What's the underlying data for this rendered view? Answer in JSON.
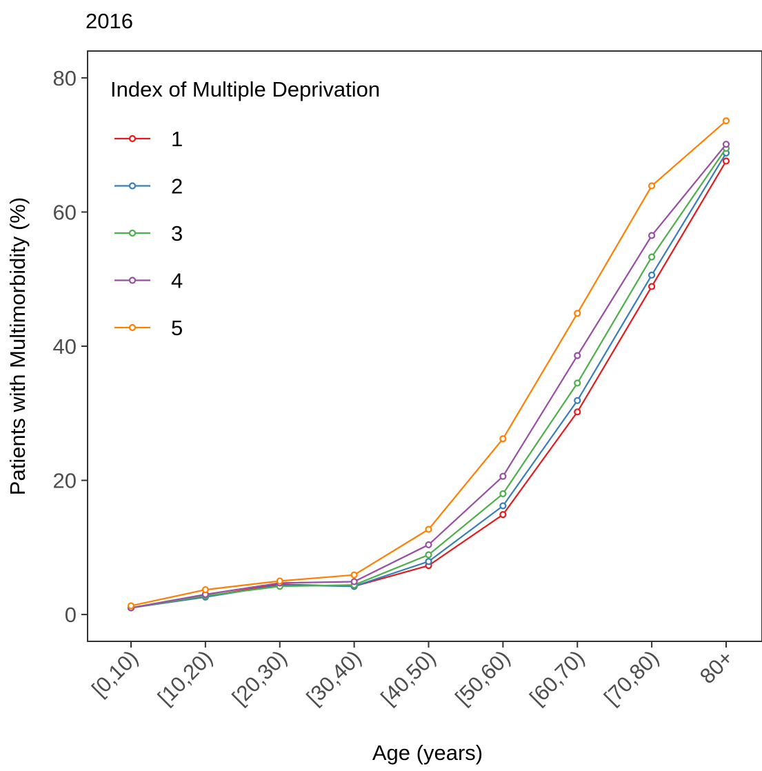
{
  "chart_data": {
    "type": "line",
    "title": "2016",
    "xlabel": "Age (years)",
    "ylabel": "Patients with Multimorbidity (%)",
    "categories": [
      "[0,10)",
      "[10,20)",
      "[20,30)",
      "[30,40)",
      "[40,50)",
      "[50,60)",
      "[60,70)",
      "[70,80)",
      "80+"
    ],
    "yticks": [
      "0",
      "20",
      "40",
      "60",
      "80"
    ],
    "ylim": [
      -4,
      84
    ],
    "grid": false,
    "legend": {
      "title": "Index of Multiple Deprivation",
      "position": "top-left"
    },
    "series": [
      {
        "name": "1",
        "color": "#e41a1c",
        "values": [
          1.0,
          2.7,
          4.5,
          4.2,
          7.3,
          14.9,
          30.2,
          48.9,
          67.6
        ]
      },
      {
        "name": "2",
        "color": "#377eb8",
        "values": [
          1.0,
          2.6,
          4.4,
          4.2,
          7.9,
          16.2,
          31.9,
          50.6,
          68.8
        ]
      },
      {
        "name": "3",
        "color": "#4daf4a",
        "values": [
          1.0,
          2.8,
          4.2,
          4.4,
          8.9,
          18.0,
          34.5,
          53.3,
          69.5
        ]
      },
      {
        "name": "4",
        "color": "#984ea3",
        "values": [
          1.0,
          3.0,
          4.7,
          4.9,
          10.4,
          20.6,
          38.6,
          56.5,
          70.1
        ]
      },
      {
        "name": "5",
        "color": "#ff7f00",
        "values": [
          1.3,
          3.7,
          5.0,
          5.9,
          12.7,
          26.2,
          44.9,
          63.9,
          73.6
        ]
      }
    ]
  }
}
